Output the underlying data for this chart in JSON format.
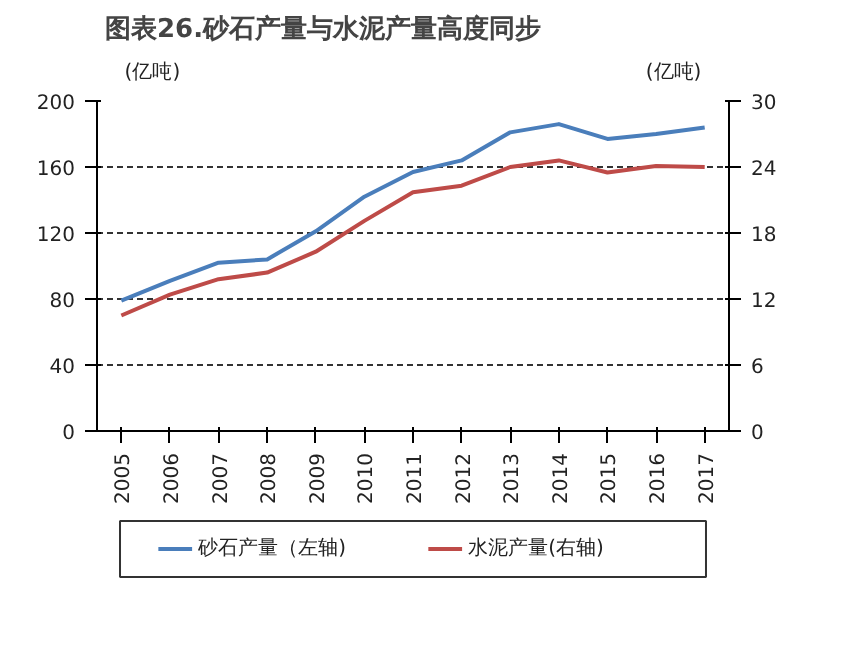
{
  "chart_data": {
    "type": "line",
    "title": "图表26.砂石产量与水泥产量高度同步",
    "ylabel": "(亿吨)",
    "y2label": "(亿吨)",
    "categories": [
      "2005",
      "2006",
      "2007",
      "2008",
      "2009",
      "2010",
      "2011",
      "2012",
      "2013",
      "2014",
      "2015",
      "2016",
      "2017"
    ],
    "series": [
      {
        "name": "砂石产量（左轴)",
        "color": "#4a7ebb",
        "values": [
          79,
          91,
          102,
          104,
          121,
          142,
          157,
          164,
          181,
          186,
          177,
          180,
          184
        ]
      },
      {
        "name": "水泥产量(右轴)",
        "color": "#be4b48",
        "axis": "y2",
        "values": [
          10.5,
          12.4,
          13.8,
          14.4,
          16.3,
          19.1,
          21.7,
          22.3,
          24.0,
          24.6,
          23.5,
          24.1,
          24.0
        ]
      }
    ],
    "ylim": [
      0,
      200
    ],
    "yticks": [
      0,
      40,
      80,
      120,
      160,
      200
    ],
    "y2lim": [
      0,
      30
    ],
    "y2ticks": [
      0,
      6,
      12,
      18,
      24,
      30
    ],
    "grid": "y",
    "legend": "bottom"
  }
}
